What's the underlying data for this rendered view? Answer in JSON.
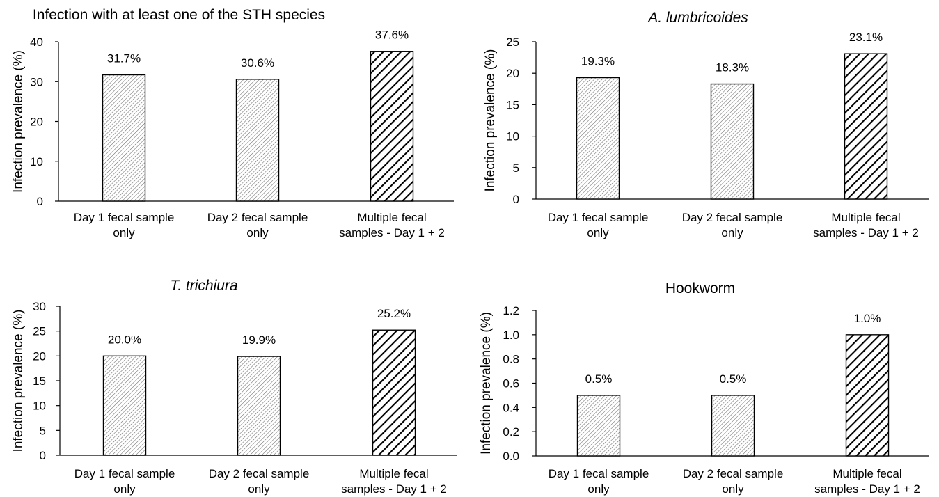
{
  "chart_data": [
    {
      "type": "bar",
      "title": "Infection  with at least one of the STH species",
      "title_italic": false,
      "ylabel": "Infection prevalence (%)",
      "ylim": [
        0,
        40
      ],
      "yticks": [
        "0",
        "10",
        "20",
        "30",
        "40"
      ],
      "categories": [
        [
          "Day 1 fecal sample",
          "only"
        ],
        [
          "Day 2 fecal sample",
          "only"
        ],
        [
          "Multiple fecal",
          "samples - Day 1 + 2"
        ]
      ],
      "values": [
        31.7,
        30.6,
        37.6
      ],
      "data_labels": [
        "31.7%",
        "30.6%",
        "37.6%"
      ],
      "bar_patterns": [
        "light-diagonal",
        "light-diagonal",
        "heavy-diagonal"
      ]
    },
    {
      "type": "bar",
      "title": "A. lumbricoides",
      "title_italic": true,
      "ylabel": "Infection prevalence (%)",
      "ylim": [
        0,
        25
      ],
      "yticks": [
        "0",
        "5",
        "10",
        "15",
        "20",
        "25"
      ],
      "categories": [
        [
          "Day 1 fecal sample",
          "only"
        ],
        [
          "Day 2 fecal sample",
          "only"
        ],
        [
          "Multiple fecal",
          "samples - Day 1 + 2"
        ]
      ],
      "values": [
        19.3,
        18.3,
        23.1
      ],
      "data_labels": [
        "19.3%",
        "18.3%",
        "23.1%"
      ],
      "bar_patterns": [
        "light-diagonal",
        "light-diagonal",
        "heavy-diagonal"
      ]
    },
    {
      "type": "bar",
      "title": "T. trichiura",
      "title_italic": true,
      "ylabel": "Infection prevalence (%)",
      "ylim": [
        0,
        30
      ],
      "yticks": [
        "0",
        "5",
        "10",
        "15",
        "20",
        "25",
        "30"
      ],
      "categories": [
        [
          "Day 1 fecal sample",
          "only"
        ],
        [
          "Day 2 fecal sample",
          "only"
        ],
        [
          "Multiple fecal",
          "samples - Day 1 + 2"
        ]
      ],
      "values": [
        20.0,
        19.9,
        25.2
      ],
      "data_labels": [
        "20.0%",
        "19.9%",
        "25.2%"
      ],
      "bar_patterns": [
        "light-diagonal",
        "light-diagonal",
        "heavy-diagonal"
      ]
    },
    {
      "type": "bar",
      "title": "Hookworm",
      "title_italic": false,
      "ylabel": "Infection prevalence (%)",
      "ylim": [
        0,
        1.2
      ],
      "yticks": [
        "0.0",
        "0.2",
        "0.4",
        "0.6",
        "0.8",
        "1.0",
        "1.2"
      ],
      "categories": [
        [
          "Day 1 fecal sample",
          "only"
        ],
        [
          "Day 2 fecal sample",
          "only"
        ],
        [
          "Multiple fecal",
          "samples - Day 1 + 2"
        ]
      ],
      "values": [
        0.5,
        0.5,
        1.0
      ],
      "data_labels": [
        "0.5%",
        "0.5%",
        "1.0%"
      ],
      "bar_patterns": [
        "light-diagonal",
        "light-diagonal",
        "heavy-diagonal"
      ]
    }
  ]
}
